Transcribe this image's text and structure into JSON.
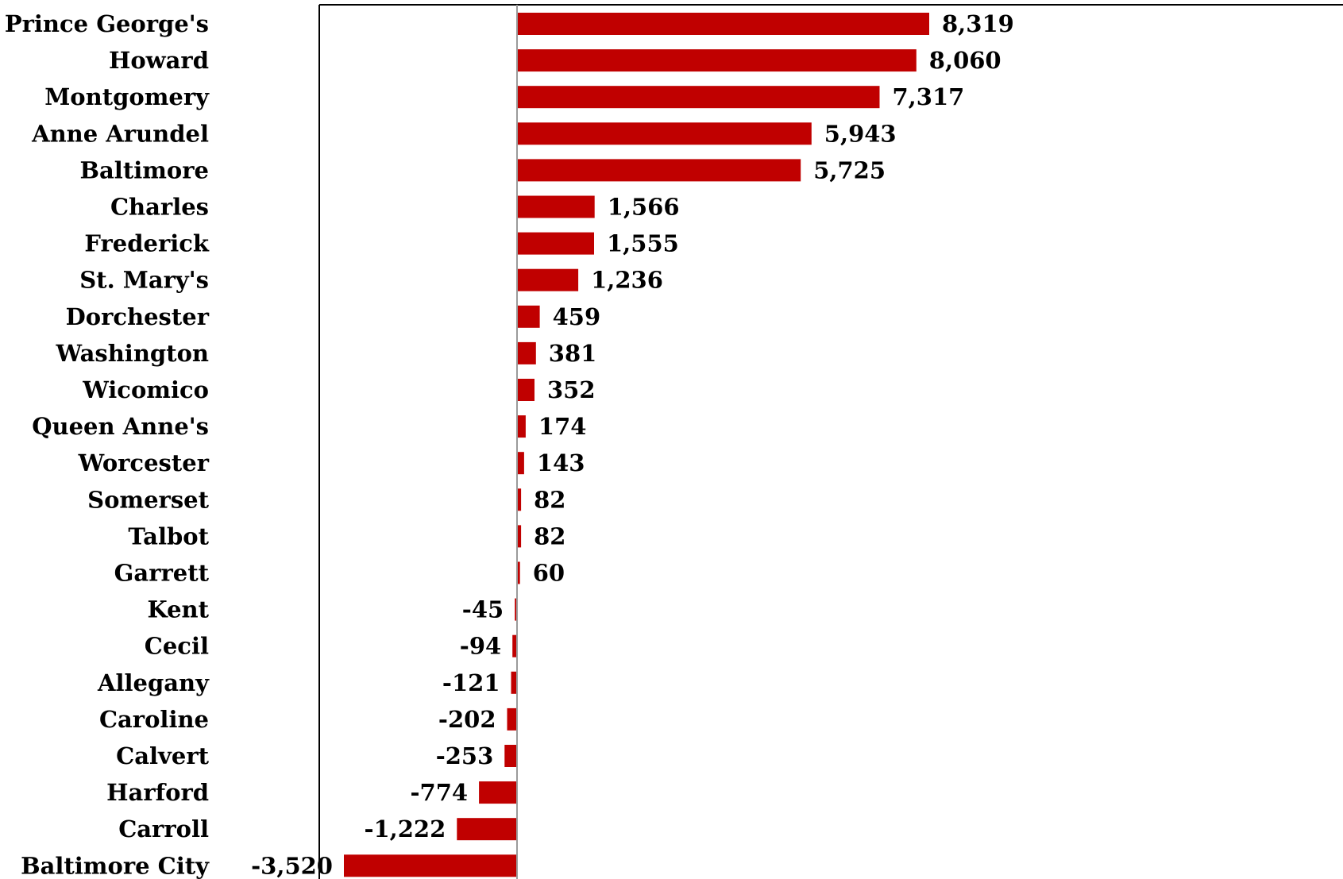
{
  "chart_data": {
    "type": "bar",
    "orientation": "horizontal",
    "title": "",
    "xlabel": "",
    "ylabel": "",
    "grid": false,
    "legend": "none",
    "bar_color": "#C00000",
    "xlim": [
      -3520,
      8319
    ],
    "categories": [
      "Prince George's",
      "Howard",
      "Montgomery",
      "Anne Arundel",
      "Baltimore",
      "Charles",
      "Frederick",
      "St. Mary's",
      "Dorchester",
      "Washington",
      "Wicomico",
      "Queen Anne's",
      "Worcester",
      "Somerset",
      "Talbot",
      "Garrett",
      "Kent",
      "Cecil",
      "Allegany",
      "Caroline",
      "Calvert",
      "Harford",
      "Carroll",
      "Baltimore City"
    ],
    "values": [
      8319,
      8060,
      7317,
      5943,
      5725,
      1566,
      1555,
      1236,
      459,
      381,
      352,
      174,
      143,
      82,
      82,
      60,
      -45,
      -94,
      -121,
      -202,
      -253,
      -774,
      -1222,
      -3520
    ],
    "data_labels": [
      "8,319",
      "8,060",
      "7,317",
      "5,943",
      "5,725",
      "1,566",
      "1,555",
      "1,236",
      "459",
      "381",
      "352",
      "174",
      "143",
      "82",
      "82",
      "60",
      "-45",
      "-94",
      "-121",
      "-202",
      "-253",
      "-774",
      "-1,222",
      "-3,520"
    ]
  }
}
